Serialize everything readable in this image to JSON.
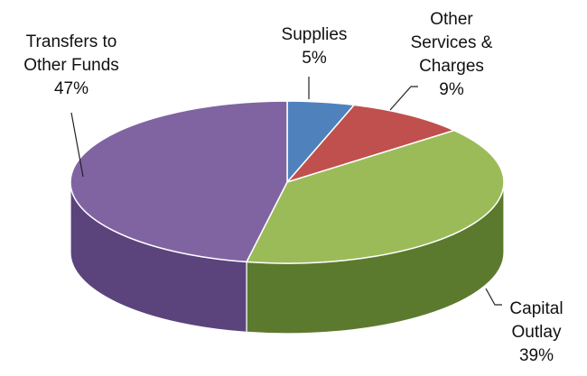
{
  "chart_data": {
    "type": "pie",
    "style": "3d",
    "categories": [
      "Supplies",
      "Other Services & Charges",
      "Capital Outlay",
      "Transfers to Other Funds"
    ],
    "values": [
      5,
      9,
      39,
      47
    ],
    "label_lines": [
      [
        "Supplies",
        "5%"
      ],
      [
        "Other",
        "Services &",
        "Charges",
        "9%"
      ],
      [
        "Capital",
        "Outlay",
        "39%"
      ],
      [
        "Transfers to",
        "Other Funds",
        "47%"
      ]
    ],
    "colors": [
      "#4F81BD",
      "#C0504D",
      "#9BBB59",
      "#8064A2"
    ],
    "side_colors": [
      "#2F5F96",
      "#8C3432",
      "#5C7A2E",
      "#5B437C"
    ],
    "legend": "none"
  }
}
